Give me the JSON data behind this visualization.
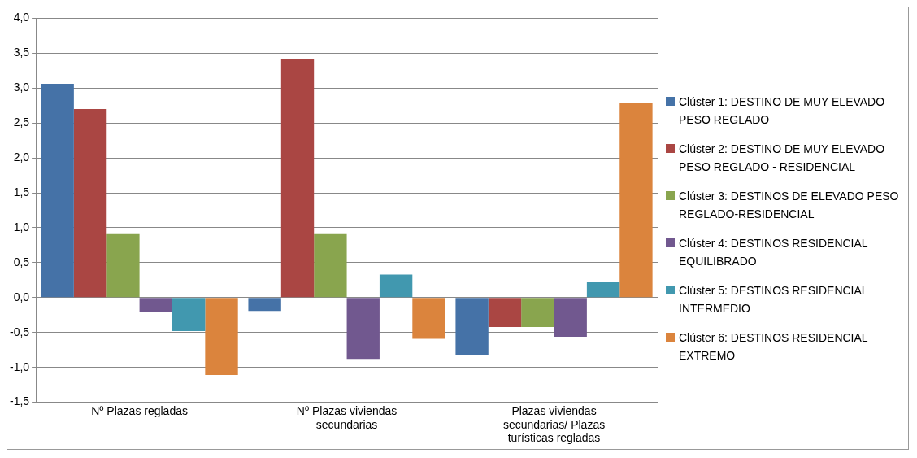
{
  "chart_data": {
    "type": "bar",
    "categories": [
      "Nº Plazas regladas",
      "Nº Plazas viviendas secundarias",
      "Plazas viviendas secundarias/ Plazas turísticas regladas"
    ],
    "series": [
      {
        "name": "Clúster 1: DESTINO  DE MUY ELEVADO PESO REGLADO",
        "color": "#4572a7",
        "values": [
          3.06,
          -0.19,
          -0.82
        ]
      },
      {
        "name": "Clúster 2: DESTINO  DE MUY ELEVADO PESO  REGLADO - RESIDENCIAL",
        "color": "#aa4643",
        "values": [
          2.7,
          3.41,
          -0.42
        ]
      },
      {
        "name": "Clúster 3: DESTINOS  DE ELEVADO PESO REGLADO-RESIDENCIAL",
        "color": "#89a54e",
        "values": [
          0.91,
          0.91,
          -0.42
        ]
      },
      {
        "name": "Clúster 4: DESTINOS  RESIDENCIAL EQUILIBRADO",
        "color": "#71588f",
        "values": [
          -0.2,
          -0.88,
          -0.56
        ]
      },
      {
        "name": "Clúster 5: DESTINOS  RESIDENCIAL INTERMEDIO",
        "color": "#4198af",
        "values": [
          -0.48,
          0.33,
          0.22
        ]
      },
      {
        "name": "Clúster 6: DESTINOS  RESIDENCIAL EXTREMO",
        "color": "#db843d",
        "values": [
          -1.11,
          -0.59,
          2.79
        ]
      }
    ],
    "ylim": [
      -1.5,
      4
    ],
    "yticks": [
      {
        "value": -1.5,
        "label": "-1,5"
      },
      {
        "value": -1,
        "label": "-1,0"
      },
      {
        "value": -0.5,
        "label": "-0,5"
      },
      {
        "value": 0,
        "label": "0,0"
      },
      {
        "value": 0.5,
        "label": "0,5"
      },
      {
        "value": 1,
        "label": "1,0"
      },
      {
        "value": 1.5,
        "label": "1,5"
      },
      {
        "value": 2,
        "label": "2,0"
      },
      {
        "value": 2.5,
        "label": "2,5"
      },
      {
        "value": 3,
        "label": "3,0"
      },
      {
        "value": 3.5,
        "label": "3,5"
      },
      {
        "value": 4,
        "label": "4,0"
      }
    ],
    "grid": "y",
    "legend": "right"
  }
}
